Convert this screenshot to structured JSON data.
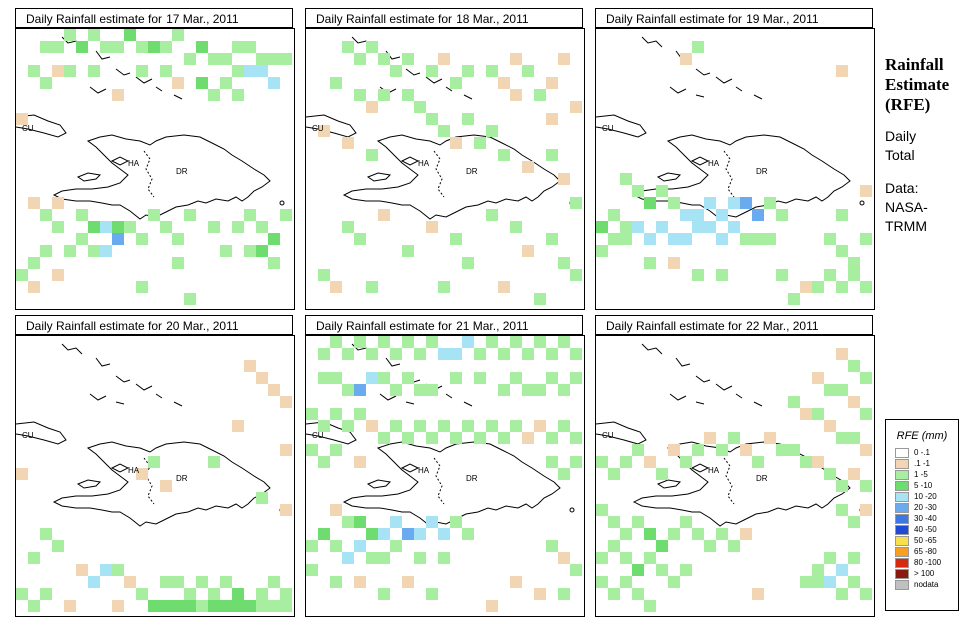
{
  "panels": [
    {
      "title": "Daily Rainfall estimate for",
      "date": "17 Mar., 2011"
    },
    {
      "title": "Daily Rainfall estimate for",
      "date": "18 Mar., 2011"
    },
    {
      "title": "Daily Rainfall estimate for",
      "date": "19 Mar., 2011"
    },
    {
      "title": "Daily Rainfall estimate for",
      "date": "20 Mar., 2011"
    },
    {
      "title": "Daily Rainfall estimate for",
      "date": "21 Mar., 2011"
    },
    {
      "title": "Daily Rainfall estimate for",
      "date": "22 Mar., 2011"
    }
  ],
  "map_labels": {
    "cuba": "CU",
    "haiti": "HA",
    "dominican_republic": "DR"
  },
  "side": {
    "title_lines": [
      "Rainfall",
      "Estimate",
      "(RFE)"
    ],
    "daily_total": [
      "Daily",
      "Total"
    ],
    "data_source": [
      "Data:",
      "NASA-",
      "TRMM"
    ]
  },
  "legend": {
    "title": "RFE (mm)",
    "items": [
      {
        "label": "0 -.1",
        "color": "#ffffff"
      },
      {
        "label": ".1 -1",
        "color": "#f2d6b4"
      },
      {
        "label": "1 -5",
        "color": "#a8eea0"
      },
      {
        "label": "5 -10",
        "color": "#6fdc6f"
      },
      {
        "label": "10 -20",
        "color": "#a6e4f5"
      },
      {
        "label": "20 -30",
        "color": "#6aaaee"
      },
      {
        "label": "30 -40",
        "color": "#3c78e0"
      },
      {
        "label": "40 -50",
        "color": "#1e4ad6"
      },
      {
        "label": "50 -65",
        "color": "#f7e04a"
      },
      {
        "label": "65 -80",
        "color": "#f5a020"
      },
      {
        "label": "80 -100",
        "color": "#d42a10"
      },
      {
        "label": "> 100",
        "color": "#8a1a10"
      },
      {
        "label": "nodata",
        "color": "#c0c0c0"
      }
    ]
  }
}
